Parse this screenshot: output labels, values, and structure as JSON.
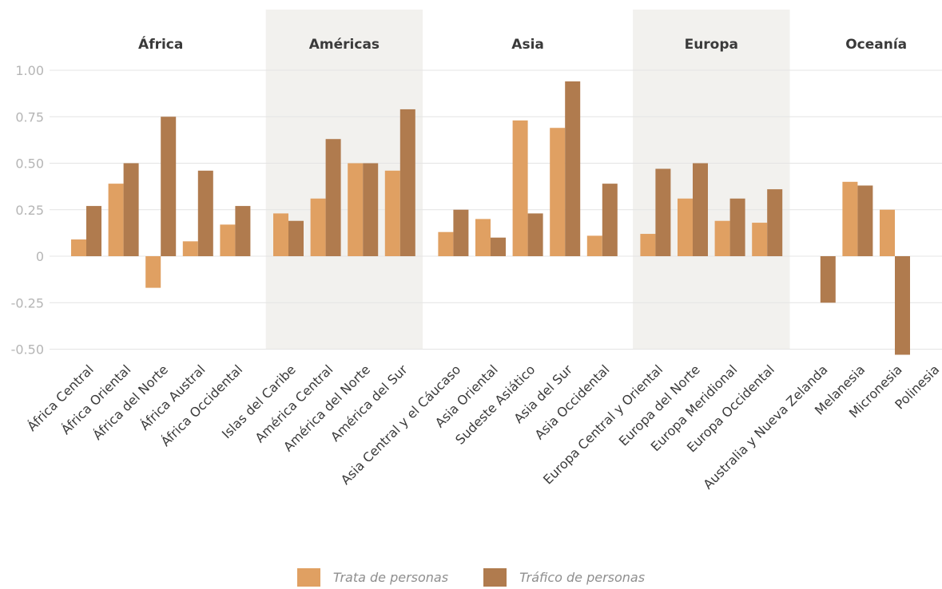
{
  "colors": {
    "trata": "#e0a062",
    "trafico": "#b07b4e",
    "band": "#f2f1ee",
    "grid": "#e4e4e4",
    "tick": "#b5b5b5",
    "text": "#3a3a3a"
  },
  "chart_data": {
    "type": "bar",
    "ylim": [
      -0.5,
      1.0
    ],
    "yticks": [
      "1.00",
      "0.75",
      "0.50",
      "0.25",
      "0",
      "-0.25",
      "-0.50"
    ],
    "ytick_values": [
      1.0,
      0.75,
      0.5,
      0.25,
      0,
      -0.25,
      -0.5
    ],
    "grid": true,
    "legend_position": "bottom-center",
    "groups": [
      {
        "name": "África",
        "shaded": false,
        "categories": [
          "África Central",
          "África Oriental",
          "África del Norte",
          "África Austral",
          "África Occidental"
        ]
      },
      {
        "name": "Américas",
        "shaded": true,
        "categories": [
          "Islas del Caribe",
          "América Central",
          "América del Norte",
          "América del Sur"
        ]
      },
      {
        "name": "Asia",
        "shaded": false,
        "categories": [
          "Asia Central y el Cáucaso",
          "Asia Oriental",
          "Sudeste Asiático",
          "Asia del Sur",
          "Asia Occidental"
        ]
      },
      {
        "name": "Europa",
        "shaded": true,
        "categories": [
          "Europa Central y Oriental",
          "Europa del Norte",
          "Europa Meridional",
          "Europa Occidental"
        ]
      },
      {
        "name": "Oceanía",
        "shaded": false,
        "categories": [
          "Australia y Nueva Zelanda",
          "Melanesia",
          "Micronesia",
          "Polinesia"
        ]
      }
    ],
    "series": [
      {
        "name": "Trata de personas",
        "values": [
          0.09,
          0.39,
          -0.17,
          0.08,
          0.17,
          0.23,
          0.31,
          0.5,
          0.46,
          0.13,
          0.2,
          0.73,
          0.69,
          0.11,
          0.12,
          0.31,
          0.19,
          0.18,
          null,
          0.4,
          0.25,
          null
        ]
      },
      {
        "name": "Tráfico de personas",
        "values": [
          0.27,
          0.5,
          0.75,
          0.46,
          0.27,
          0.19,
          0.63,
          0.5,
          0.79,
          0.25,
          0.1,
          0.23,
          0.94,
          0.39,
          0.47,
          0.5,
          0.31,
          0.36,
          -0.25,
          0.38,
          -0.53,
          null
        ]
      }
    ]
  }
}
